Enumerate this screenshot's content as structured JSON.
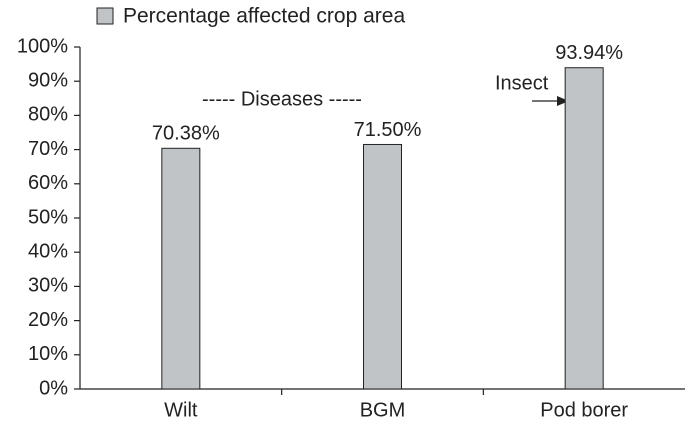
{
  "chart_data": {
    "type": "bar",
    "legend_label": "Percentage affected crop area",
    "categories": [
      "Wilt",
      "BGM",
      "Pod borer"
    ],
    "values": [
      70.38,
      71.5,
      93.94
    ],
    "value_labels": [
      "70.38%",
      "71.50%",
      "93.94%"
    ],
    "color": "#c0c4c6",
    "ylim": [
      0,
      100
    ],
    "yticks": [
      {
        "value": 0,
        "label": "0%"
      },
      {
        "value": 10,
        "label": "10%"
      },
      {
        "value": 20,
        "label": "20%"
      },
      {
        "value": 30,
        "label": "30%"
      },
      {
        "value": 40,
        "label": "40%"
      },
      {
        "value": 50,
        "label": "50%"
      },
      {
        "value": 60,
        "label": "60%"
      },
      {
        "value": 70,
        "label": "70%"
      },
      {
        "value": 80,
        "label": "80%"
      },
      {
        "value": 90,
        "label": "90%"
      },
      {
        "value": 100,
        "label": "100%"
      }
    ],
    "annotations": [
      "----- Diseases -----",
      "Insect"
    ],
    "grid": false
  }
}
